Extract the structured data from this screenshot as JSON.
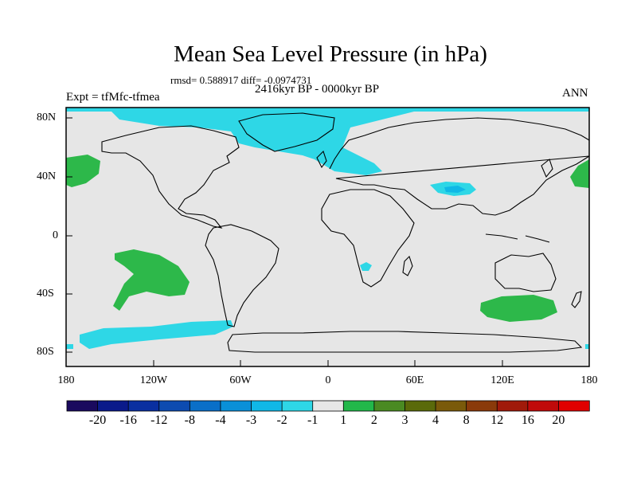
{
  "title": "Mean Sea Level Pressure (in hPa)",
  "stats": "rmsd= 0.588917 diff= -0.0974731",
  "period": "2416kyr BP - 0000kyr BP",
  "experiment": "Expt = tfMfc-tfmea",
  "season": "ANN",
  "lat_labels": [
    "80N",
    "40N",
    "0",
    "40S",
    "80S"
  ],
  "lon_labels": [
    "180",
    "120W",
    "60W",
    "0",
    "60E",
    "120E",
    "180"
  ],
  "colorbar": {
    "labels": [
      "-20",
      "-16",
      "-12",
      "-8",
      "-4",
      "-3",
      "-2",
      "-1",
      "1",
      "2",
      "3",
      "4",
      "8",
      "12",
      "16",
      "20"
    ],
    "colors": [
      "#1a0a5e",
      "#0a1a8a",
      "#0a2fa0",
      "#0d4bb0",
      "#0a6fc8",
      "#0a90d8",
      "#10b8e6",
      "#2ed7e6",
      "#e6e6e6",
      "#22b84a",
      "#4a8a22",
      "#5a6a0a",
      "#7a5a0a",
      "#8a3a0a",
      "#a01a0a",
      "#c00a0a",
      "#e00000"
    ]
  },
  "map_colors": {
    "neutral": "#e6e6e6",
    "negative_small": "#2ed7e6",
    "negative_medium": "#10b8e6",
    "positive_small": "#2db84a"
  }
}
